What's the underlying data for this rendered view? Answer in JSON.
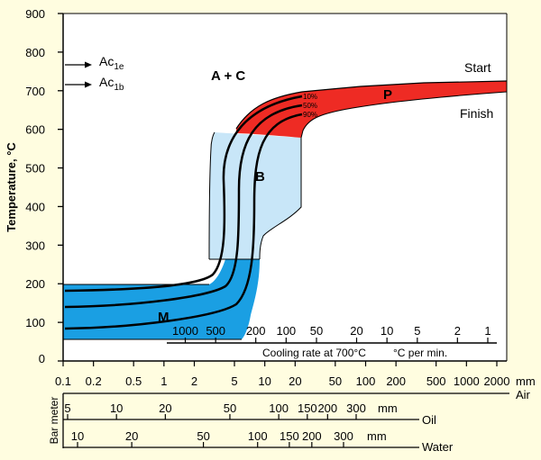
{
  "chart_data": {
    "type": "cct-diagram",
    "ylabel": "Temperature, °C",
    "ylim": [
      0,
      900
    ],
    "yticks": [
      0,
      100,
      200,
      300,
      400,
      500,
      600,
      700,
      800,
      900
    ],
    "markers": [
      {
        "base": "Ac",
        "sub": "1e",
        "temperature": 770
      },
      {
        "base": "Ac",
        "sub": "1b",
        "temperature": 715
      }
    ],
    "cooling_rate_axis": {
      "unit_label": "°C per min.",
      "title": "Cooling rate at 700°C",
      "ticks": [
        {
          "label": "1000",
          "value": 1000
        },
        {
          "label": "500",
          "value": 500
        },
        {
          "label": "200",
          "value": 200
        },
        {
          "label": "100",
          "value": 100
        },
        {
          "label": "50",
          "value": 50
        },
        {
          "label": "20",
          "value": 20
        },
        {
          "label": "10",
          "value": 10
        },
        {
          "label": "5",
          "value": 5
        },
        {
          "label": "2",
          "value": 2
        },
        {
          "label": "1",
          "value": 1
        }
      ]
    },
    "air_axis": {
      "label": "Air",
      "unit": "mm",
      "ticks": [
        {
          "label": "0.1",
          "value": 0.1
        },
        {
          "label": "0.2",
          "value": 0.2
        },
        {
          "label": "0.5",
          "value": 0.5
        },
        {
          "label": "1",
          "value": 1
        },
        {
          "label": "2",
          "value": 2
        },
        {
          "label": "5",
          "value": 5
        },
        {
          "label": "10",
          "value": 10
        },
        {
          "label": "20",
          "value": 20
        },
        {
          "label": "50",
          "value": 50
        },
        {
          "label": "100",
          "value": 100
        },
        {
          "label": "200",
          "value": 200
        },
        {
          "label": "500",
          "value": 500
        },
        {
          "label": "1000",
          "value": 1000
        },
        {
          "label": "2000",
          "value": 2000
        }
      ]
    },
    "oil_axis": {
      "label": "Oil",
      "unit": "mm",
      "ticks": [
        {
          "label": "5",
          "value": 5
        },
        {
          "label": "10",
          "value": 10
        },
        {
          "label": "20",
          "value": 20
        },
        {
          "label": "50",
          "value": 50
        },
        {
          "label": "100",
          "value": 100
        },
        {
          "label": "150",
          "value": 150
        },
        {
          "label": "200",
          "value": 200
        },
        {
          "label": "300",
          "value": 300
        }
      ]
    },
    "water_axis": {
      "label": "Water",
      "unit": "mm",
      "ticks": [
        {
          "label": "10",
          "value": 10
        },
        {
          "label": "20",
          "value": 20
        },
        {
          "label": "50",
          "value": 50
        },
        {
          "label": "100",
          "value": 100
        },
        {
          "label": "150",
          "value": 150
        },
        {
          "label": "200",
          "value": 200
        },
        {
          "label": "300",
          "value": 300
        }
      ]
    },
    "bar_group_label": "Bar meter",
    "regions": [
      {
        "label": "A + C",
        "color": "#ffffff"
      },
      {
        "label": "P",
        "color": "#ee2b24"
      },
      {
        "label": "B",
        "color": "#c8e6f8"
      },
      {
        "label": "M",
        "color": "#1a9fe3"
      }
    ],
    "pearlite_labels": {
      "start": "Start",
      "finish": "Finish"
    },
    "transformation_curves": [
      "10%",
      "50%",
      "90%"
    ],
    "colors": {
      "background": "#fffde0",
      "pearlite": "#ee2b24",
      "bainite": "#c8e6f8",
      "martensite": "#1a9fe3",
      "plot_area": "#ffffff",
      "axes": "#000000"
    }
  }
}
